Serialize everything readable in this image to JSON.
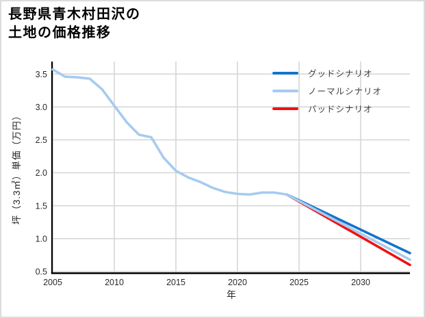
{
  "page": {
    "title_line1": "長野県青木村田沢の",
    "title_line2": "土地の価格推移"
  },
  "chart_data": {
    "type": "line",
    "title": "長野県青木村田沢の土地の価格推移",
    "xlabel": "年",
    "ylabel": "坪（3.3㎡）単価（万円）",
    "xlim": [
      2005,
      2034
    ],
    "ylim": [
      0.48,
      3.69
    ],
    "x_ticks": [
      "2005",
      "2010",
      "2015",
      "2020",
      "2025",
      "2030"
    ],
    "y_ticks": [
      "0.5",
      "1.0",
      "1.5",
      "2.0",
      "2.5",
      "3.0",
      "3.5"
    ],
    "grid": true,
    "legend_position": "upper right",
    "axis_color": "#000000",
    "grid_color": "#d4d4d4",
    "tick_label_color": "#2a2a2a",
    "series": [
      {
        "name": "グッドシナリオ",
        "color": "#1274cc",
        "x": [
          2024,
          2034
        ],
        "y": [
          1.67,
          0.78
        ]
      },
      {
        "name": "ノーマルシナリオ",
        "color": "#a6cbf0",
        "x": [
          2005,
          2006,
          2007,
          2008,
          2009,
          2010,
          2011,
          2012,
          2013,
          2014,
          2015,
          2016,
          2017,
          2018,
          2019,
          2020,
          2021,
          2022,
          2023,
          2024,
          2034
        ],
        "y": [
          3.57,
          3.46,
          3.45,
          3.43,
          3.27,
          3.02,
          2.77,
          2.58,
          2.54,
          2.23,
          2.03,
          1.93,
          1.86,
          1.77,
          1.71,
          1.68,
          1.67,
          1.7,
          1.7,
          1.67,
          0.68
        ]
      },
      {
        "name": "バッドシナリオ",
        "color": "#f21010",
        "x": [
          2024,
          2034
        ],
        "y": [
          1.67,
          0.6
        ]
      }
    ]
  }
}
